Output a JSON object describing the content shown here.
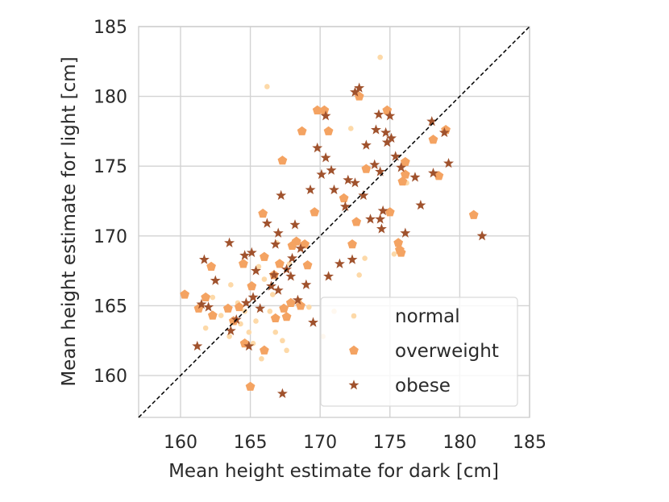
{
  "chart_data": {
    "type": "scatter",
    "xlabel": "Mean height estimate for dark [cm]",
    "ylabel": "Mean height estimate for light [cm]",
    "xlim": [
      157,
      185
    ],
    "ylim": [
      157,
      185
    ],
    "x_ticks": [
      160,
      165,
      170,
      175,
      180,
      185
    ],
    "y_ticks": [
      160,
      165,
      170,
      175,
      180,
      185
    ],
    "grid": true,
    "diagonal": {
      "style": "dashed",
      "color": "#000000",
      "from": [
        157,
        157
      ],
      "to": [
        185,
        185
      ]
    },
    "legend": {
      "placement": "bottom-right"
    },
    "series": [
      {
        "name": "normal",
        "marker": "circle",
        "color": "#fdd9a8",
        "points": [
          [
            166.2,
            180.7
          ],
          [
            174.3,
            182.8
          ],
          [
            163.6,
            166.5
          ],
          [
            164.1,
            165.2
          ],
          [
            164.6,
            164.6
          ],
          [
            164.3,
            163.7
          ],
          [
            164.9,
            163.1
          ],
          [
            163.5,
            162.8
          ],
          [
            165.2,
            162.3
          ],
          [
            165.8,
            161.2
          ],
          [
            166.4,
            164.6
          ],
          [
            166.8,
            163.1
          ],
          [
            167.3,
            162.5
          ],
          [
            167.6,
            161.8
          ],
          [
            166.0,
            166.9
          ],
          [
            165.6,
            167.8
          ],
          [
            166.9,
            169.5
          ],
          [
            167.8,
            168.0
          ],
          [
            162.3,
            165.6
          ],
          [
            162.9,
            164.3
          ],
          [
            168.5,
            165.4
          ],
          [
            169.2,
            164.9
          ],
          [
            172.4,
            164.2
          ],
          [
            172.8,
            167.2
          ],
          [
            173.2,
            168.4
          ],
          [
            172.2,
            177.7
          ],
          [
            176.2,
            173.8
          ],
          [
            175.3,
            168.7
          ],
          [
            161.8,
            163.4
          ],
          [
            170.2,
            162.8
          ],
          [
            165.4,
            163.9
          ],
          [
            166.6,
            165.8
          ],
          [
            171.0,
            164.6
          ]
        ]
      },
      {
        "name": "overweight",
        "marker": "pentagon",
        "color": "#f4a362",
        "points": [
          [
            160.3,
            165.8
          ],
          [
            161.3,
            164.8
          ],
          [
            161.8,
            165.6
          ],
          [
            162.2,
            167.8
          ],
          [
            162.3,
            164.3
          ],
          [
            163.4,
            164.8
          ],
          [
            163.8,
            163.9
          ],
          [
            164.2,
            164.9
          ],
          [
            164.5,
            168.0
          ],
          [
            164.6,
            162.3
          ],
          [
            165.0,
            159.2
          ],
          [
            165.1,
            166.4
          ],
          [
            165.9,
            171.6
          ],
          [
            166.0,
            161.8
          ],
          [
            166.0,
            168.5
          ],
          [
            166.7,
            167.2
          ],
          [
            166.8,
            164.1
          ],
          [
            167.1,
            168.0
          ],
          [
            167.3,
            175.4
          ],
          [
            167.4,
            164.8
          ],
          [
            167.6,
            164.2
          ],
          [
            167.9,
            165.2
          ],
          [
            168.0,
            169.3
          ],
          [
            168.3,
            169.6
          ],
          [
            168.6,
            165.0
          ],
          [
            168.7,
            177.5
          ],
          [
            168.9,
            169.4
          ],
          [
            169.1,
            167.9
          ],
          [
            169.6,
            171.7
          ],
          [
            169.8,
            179.0
          ],
          [
            170.3,
            179.0
          ],
          [
            170.6,
            177.5
          ],
          [
            171.7,
            172.7
          ],
          [
            172.3,
            169.4
          ],
          [
            172.6,
            171.0
          ],
          [
            172.8,
            180.0
          ],
          [
            173.3,
            174.8
          ],
          [
            174.8,
            179.0
          ],
          [
            175.0,
            171.7
          ],
          [
            175.6,
            169.5
          ],
          [
            175.8,
            168.8
          ],
          [
            175.9,
            173.9
          ],
          [
            176.1,
            174.4
          ],
          [
            176.1,
            175.3
          ],
          [
            178.1,
            176.9
          ],
          [
            178.5,
            174.3
          ],
          [
            179.0,
            177.6
          ],
          [
            181.0,
            171.5
          ],
          [
            175.7,
            169.0
          ]
        ]
      },
      {
        "name": "obese",
        "marker": "star",
        "color": "#a0522d",
        "points": [
          [
            161.2,
            162.1
          ],
          [
            161.5,
            165.1
          ],
          [
            161.7,
            168.3
          ],
          [
            162.0,
            164.9
          ],
          [
            162.5,
            166.8
          ],
          [
            163.5,
            169.5
          ],
          [
            163.6,
            163.2
          ],
          [
            164.0,
            164.0
          ],
          [
            164.6,
            168.6
          ],
          [
            164.7,
            165.2
          ],
          [
            164.9,
            162.1
          ],
          [
            165.1,
            168.8
          ],
          [
            165.4,
            167.5
          ],
          [
            165.7,
            164.8
          ],
          [
            166.2,
            170.9
          ],
          [
            166.5,
            166.4
          ],
          [
            166.7,
            167.2
          ],
          [
            166.8,
            169.4
          ],
          [
            167.0,
            166.1
          ],
          [
            167.2,
            172.9
          ],
          [
            167.3,
            158.7
          ],
          [
            167.6,
            167.6
          ],
          [
            167.9,
            167.1
          ],
          [
            168.0,
            168.4
          ],
          [
            168.2,
            170.8
          ],
          [
            168.4,
            165.4
          ],
          [
            168.6,
            169.1
          ],
          [
            169.0,
            166.5
          ],
          [
            169.3,
            173.3
          ],
          [
            169.5,
            163.8
          ],
          [
            169.8,
            176.3
          ],
          [
            170.1,
            174.4
          ],
          [
            170.4,
            175.6
          ],
          [
            170.6,
            167.1
          ],
          [
            170.8,
            174.7
          ],
          [
            171.0,
            173.3
          ],
          [
            171.4,
            168.0
          ],
          [
            171.8,
            172.1
          ],
          [
            172.0,
            174.0
          ],
          [
            172.3,
            168.3
          ],
          [
            172.5,
            180.3
          ],
          [
            172.8,
            180.6
          ],
          [
            173.1,
            172.9
          ],
          [
            173.3,
            176.5
          ],
          [
            173.6,
            171.2
          ],
          [
            173.9,
            175.1
          ],
          [
            174.0,
            177.6
          ],
          [
            174.2,
            178.7
          ],
          [
            174.3,
            174.6
          ],
          [
            174.3,
            171.2
          ],
          [
            174.4,
            170.5
          ],
          [
            174.5,
            171.8
          ],
          [
            174.7,
            177.4
          ],
          [
            174.8,
            176.7
          ],
          [
            175.0,
            178.6
          ],
          [
            175.1,
            177.0
          ],
          [
            175.4,
            175.7
          ],
          [
            175.8,
            174.9
          ],
          [
            176.1,
            170.2
          ],
          [
            176.8,
            174.2
          ],
          [
            177.2,
            172.2
          ],
          [
            178.0,
            178.2
          ],
          [
            178.1,
            174.5
          ],
          [
            178.9,
            177.4
          ],
          [
            179.2,
            175.2
          ],
          [
            181.6,
            170.0
          ],
          [
            172.5,
            173.8
          ],
          [
            170.4,
            178.6
          ],
          [
            167.0,
            170.2
          ],
          [
            165.2,
            165.6
          ]
        ]
      }
    ]
  }
}
